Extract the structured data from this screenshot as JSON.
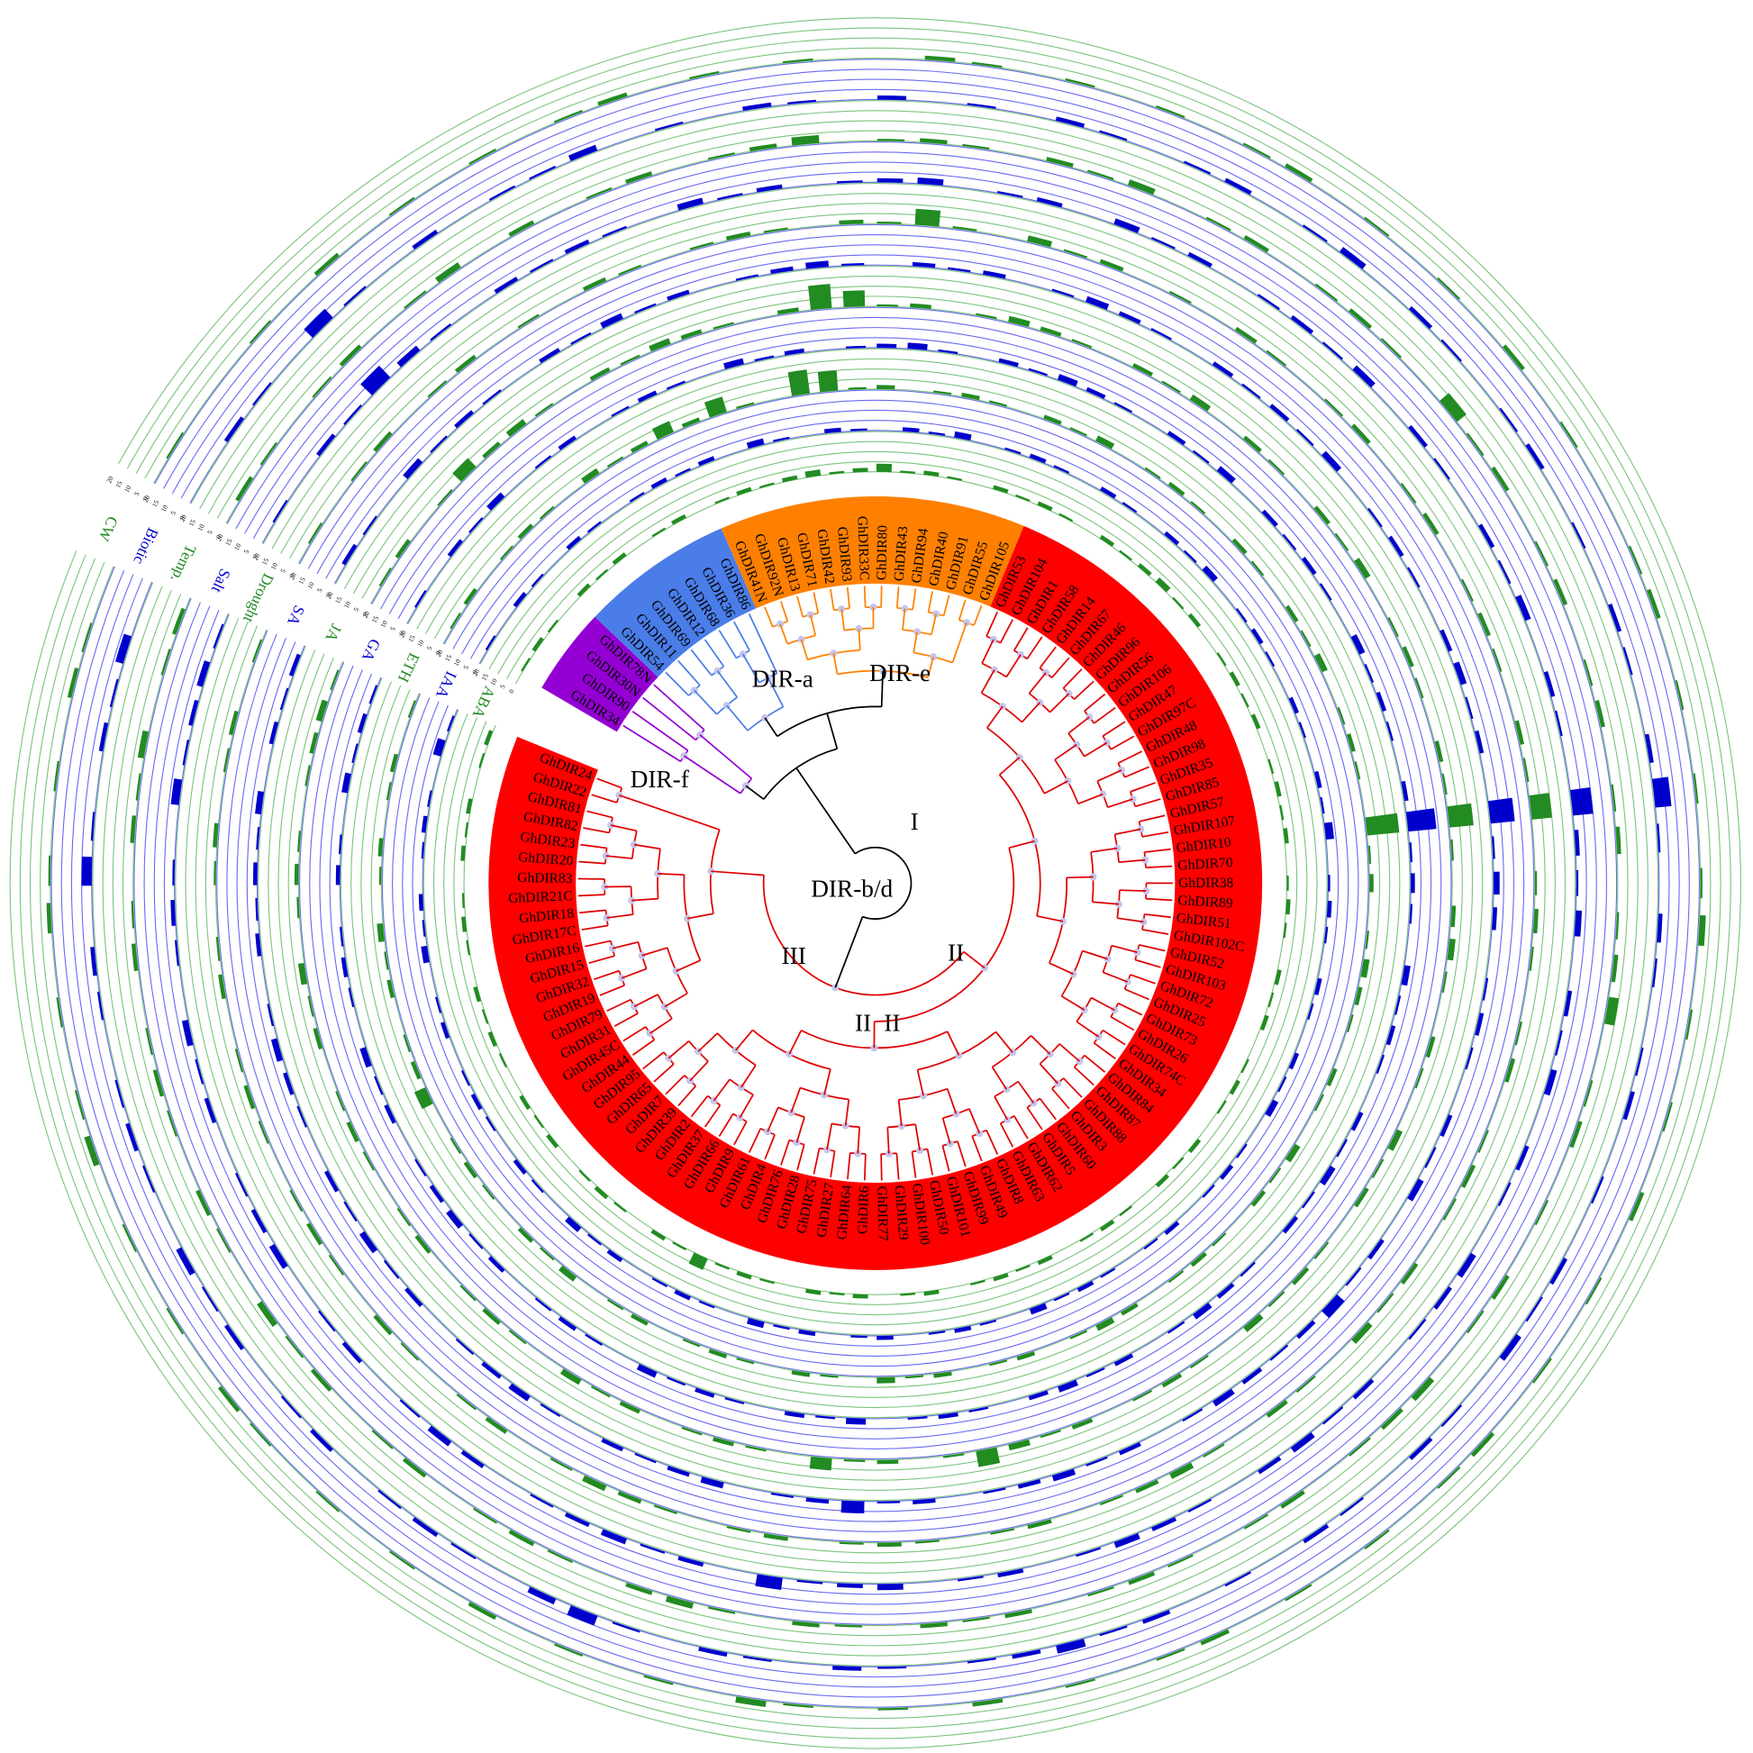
{
  "clades": [
    {
      "color": "#9400d3",
      "leaves": [
        "GhDIR34",
        "GhDIR90",
        "GhDIR30N",
        "GhDIR78N"
      ]
    },
    {
      "color": "#4a7de8",
      "leaves": [
        "GhDIR54",
        "GhDIR11",
        "GhDIR69",
        "GhDIR12",
        "GhDIR68",
        "GhDIR36",
        "GhDIR86"
      ]
    },
    {
      "color": "#ff8000",
      "leaves": [
        "GhDIR41N",
        "GhDIR92N",
        "GhDIR13",
        "GhDIR71",
        "GhDIR42",
        "GhDIR93",
        "GhDIR33C",
        "GhDIR80",
        "GhDIR43",
        "GhDIR94",
        "GhDIR40",
        "GhDIR91",
        "GhDIR55",
        "GhDIR105"
      ]
    },
    {
      "color": "#ff0000",
      "leaves": [
        "GhDIR53",
        "GhDIR104",
        "GhDIR1",
        "GhDIR58",
        "GhDIR14",
        "GhDIR67",
        "GhDIR46",
        "GhDIR96",
        "GhDIR56",
        "GhDIR106",
        "GhDIR47",
        "GhDIR97C",
        "GhDIR48",
        "GhDIR98",
        "GhDIR35",
        "GhDIR85",
        "GhDIR57",
        "GhDIR107",
        "GhDIR10",
        "GhDIR70",
        "GhDIR38",
        "GhDIR89",
        "GhDIR51",
        "GhDIR102C",
        "GhDIR52",
        "GhDIR103",
        "GhDIR72",
        "GhDIR25",
        "GhDIR73",
        "GhDIR26",
        "GhDIR74C",
        "GhDIR34",
        "GhDIR84",
        "GhDIR87",
        "GhDIR88",
        "GhDIR3",
        "GhDIR60",
        "GhDIR5",
        "GhDIR62",
        "GhDIR63",
        "GhDIR8",
        "GhDIR49",
        "GhDIR99",
        "GhDIR101",
        "GhDIR50",
        "GhDIR100",
        "GhDIR29",
        "GhDIR77",
        "GhDIR6",
        "GhDIR64",
        "GhDIR27",
        "GhDIR75",
        "GhDIR28",
        "GhDIR76",
        "GhDIR4",
        "GhDIR61",
        "GhDIR9",
        "GhDIR66",
        "GhDIR37",
        "GhDIR2",
        "GhDIR39",
        "GhDIR7",
        "GhDIR65",
        "GhDIR95",
        "GhDIR44",
        "GhDIR45C",
        "GhDIR31",
        "GhDIR79",
        "GhDIR19",
        "GhDIR32",
        "GhDIR15",
        "GhDIR16",
        "GhDIR17C",
        "GhDIR18",
        "GhDIR21C",
        "GhDIR83",
        "GhDIR20",
        "GhDIR23",
        "GhDIR82",
        "GhDIR81",
        "GhDIR22",
        "GhDIR24"
      ]
    }
  ],
  "annotations": [
    "DIR-a",
    "DIR-e",
    "DIR-f",
    "DIR-b/d",
    "I",
    "II",
    "II",
    "II",
    "III"
  ],
  "track_lim": [
    0,
    20
  ],
  "track_ticks": [
    0,
    5,
    10,
    15,
    20
  ],
  "tracks": [
    {
      "name": "ABA",
      "color": "#228b22",
      "values": [
        1,
        2,
        1,
        0,
        2,
        1,
        2,
        0,
        1,
        2,
        0,
        1,
        2,
        1,
        2,
        3,
        1,
        2,
        4,
        1,
        2,
        1,
        0,
        2,
        1,
        2,
        1,
        0,
        2,
        1,
        2,
        3,
        1,
        2,
        0,
        1,
        2,
        1,
        2,
        0,
        1,
        2,
        1,
        2,
        0,
        1,
        2,
        1,
        0,
        2,
        1,
        2,
        0,
        1,
        2,
        1,
        0,
        2,
        1,
        2,
        0,
        1,
        2,
        1,
        0,
        2,
        1,
        2,
        1,
        0,
        2,
        1,
        0,
        2,
        1,
        2,
        0,
        1,
        2,
        1,
        6,
        1,
        2,
        0,
        1,
        2,
        1,
        0,
        2,
        1,
        2,
        0,
        1,
        2,
        1,
        2,
        0,
        1,
        2,
        1,
        0,
        2,
        1,
        2,
        0,
        1,
        2
      ]
    },
    {
      "name": "IAA",
      "color": "#0000cc",
      "values": [
        1,
        0,
        2,
        1,
        0,
        2,
        1,
        0,
        1,
        2,
        1,
        2,
        0,
        3,
        1,
        0,
        2,
        1,
        0,
        2,
        1,
        3,
        0,
        1,
        2,
        1,
        0,
        2,
        1,
        0,
        2,
        1,
        3,
        0,
        1,
        2,
        1,
        0,
        2,
        1,
        0,
        2,
        1,
        4,
        0,
        1,
        2,
        1,
        0,
        2,
        1,
        0,
        2,
        1,
        3,
        0,
        1,
        2,
        1,
        0,
        2,
        1,
        0,
        1,
        2,
        1,
        3,
        0,
        1,
        2,
        1,
        0,
        2,
        1,
        0,
        2,
        1,
        3,
        0,
        1,
        2,
        1,
        0,
        2,
        1,
        3,
        0,
        1,
        2,
        0,
        1,
        2,
        1,
        0,
        2,
        1,
        0,
        3,
        1,
        2,
        0,
        1,
        2,
        1,
        0,
        4,
        1
      ]
    },
    {
      "name": "ETH",
      "color": "#228b22",
      "values": [
        1,
        2,
        0,
        1,
        2,
        1,
        0,
        3,
        1,
        2,
        6,
        2,
        8,
        1,
        0,
        12,
        10,
        1,
        2,
        0,
        1,
        2,
        1,
        0,
        2,
        1,
        3,
        0,
        1,
        2,
        1,
        0,
        2,
        1,
        0,
        2,
        1,
        3,
        0,
        1,
        2,
        1,
        0,
        16,
        1,
        2,
        0,
        1,
        3,
        2,
        1,
        0,
        2,
        1,
        0,
        3,
        1,
        2,
        0,
        1,
        2,
        1,
        0,
        2,
        3,
        1,
        0,
        2,
        1,
        0,
        2,
        1,
        3,
        0,
        1,
        2,
        0,
        1,
        2,
        1,
        0,
        2,
        1,
        0,
        3,
        1,
        2,
        0,
        1,
        2,
        1,
        0,
        6,
        2,
        1,
        0,
        2,
        1,
        3,
        0,
        1,
        2,
        0,
        1,
        2,
        0,
        1
      ]
    },
    {
      "name": "GA",
      "color": "#0000cc",
      "values": [
        1,
        0,
        2,
        1,
        3,
        0,
        1,
        2,
        0,
        1,
        2,
        1,
        0,
        3,
        1,
        2,
        0,
        1,
        2,
        3,
        1,
        0,
        2,
        1,
        3,
        2,
        1,
        0,
        2,
        1,
        3,
        0,
        2,
        1,
        2,
        1,
        0,
        3,
        1,
        2,
        1,
        0,
        2,
        14,
        1,
        2,
        1,
        0,
        3,
        1,
        2,
        1,
        0,
        2,
        1,
        3,
        1,
        2,
        0,
        1,
        2,
        3,
        1,
        0,
        2,
        1,
        3,
        2,
        0,
        1,
        2,
        1,
        0,
        3,
        1,
        2,
        0,
        1,
        2,
        1,
        3,
        0,
        1,
        2,
        1,
        0,
        2,
        1,
        3,
        2,
        1,
        0,
        2,
        1,
        3,
        0,
        1,
        2,
        1,
        0,
        2,
        1,
        0,
        3,
        1,
        2,
        1
      ]
    },
    {
      "name": "JA",
      "color": "#228b22",
      "values": [
        1,
        2,
        0,
        1,
        6,
        2,
        3,
        1,
        0,
        2,
        1,
        3,
        2,
        1,
        0,
        2,
        12,
        8,
        1,
        2,
        0,
        1,
        3,
        2,
        1,
        0,
        2,
        1,
        3,
        0,
        2,
        1,
        0,
        2,
        1,
        3,
        0,
        1,
        2,
        1,
        0,
        2,
        1,
        12,
        1,
        0,
        2,
        3,
        1,
        0,
        2,
        1,
        0,
        3,
        1,
        2,
        0,
        1,
        2,
        1,
        3,
        0,
        1,
        2,
        1,
        0,
        2,
        1,
        3,
        8,
        1,
        0,
        2,
        1,
        6,
        0,
        1,
        2,
        1,
        0,
        2,
        1,
        3,
        0,
        1,
        2,
        1,
        0,
        2,
        1,
        0,
        1,
        2,
        1,
        0,
        2,
        1,
        3,
        0,
        1,
        2,
        1,
        0,
        1,
        2,
        3,
        1
      ]
    },
    {
      "name": "SA",
      "color": "#0000cc",
      "values": [
        2,
        1,
        0,
        3,
        1,
        2,
        1,
        0,
        2,
        1,
        3,
        1,
        2,
        0,
        1,
        2,
        3,
        1,
        0,
        2,
        1,
        2,
        0,
        1,
        3,
        2,
        1,
        0,
        2,
        1,
        2,
        1,
        3,
        0,
        1,
        2,
        1,
        0,
        2,
        3,
        1,
        2,
        0,
        12,
        1,
        3,
        2,
        0,
        1,
        2,
        1,
        0,
        2,
        1,
        3,
        0,
        2,
        1,
        5,
        2,
        1,
        2,
        3,
        1,
        0,
        2,
        1,
        3,
        2,
        1,
        0,
        2,
        1,
        6,
        2,
        1,
        0,
        3,
        2,
        1,
        2,
        0,
        1,
        3,
        2,
        1,
        0,
        2,
        1,
        3,
        1,
        2,
        0,
        1,
        2,
        3,
        1,
        0,
        2,
        1,
        2,
        1,
        3,
        0,
        2,
        1,
        2
      ]
    },
    {
      "name": "Drought",
      "color": "#228b22",
      "values": [
        1,
        0,
        1,
        2,
        0,
        1,
        2,
        0,
        1,
        0,
        2,
        1,
        0,
        1,
        2,
        1,
        0,
        2,
        1,
        8,
        1,
        0,
        3,
        1,
        2,
        0,
        1,
        0,
        2,
        1,
        0,
        1,
        2,
        0,
        1,
        2,
        0,
        1,
        2,
        1,
        0,
        2,
        1,
        10,
        0,
        1,
        2,
        1,
        0,
        1,
        2,
        0,
        1,
        2,
        1,
        0,
        2,
        1,
        3,
        0,
        1,
        2,
        0,
        1,
        3,
        2,
        1,
        0,
        2,
        1,
        0,
        1,
        2,
        1,
        0,
        2,
        1,
        0,
        1,
        2,
        3,
        1,
        0,
        2,
        1,
        0,
        1,
        2,
        0,
        1,
        2,
        1,
        0,
        1,
        2,
        1,
        0,
        2,
        1,
        0,
        1,
        2,
        0,
        1,
        2,
        0,
        1
      ]
    },
    {
      "name": "Salt",
      "color": "#0000cc",
      "values": [
        1,
        0,
        2,
        1,
        8,
        3,
        1,
        0,
        2,
        1,
        2,
        1,
        0,
        3,
        1,
        2,
        0,
        1,
        2,
        3,
        0,
        1,
        2,
        0,
        3,
        1,
        2,
        0,
        1,
        2,
        1,
        3,
        0,
        2,
        1,
        0,
        2,
        1,
        3,
        0,
        2,
        1,
        0,
        10,
        2,
        1,
        3,
        0,
        2,
        1,
        3,
        0,
        2,
        1,
        0,
        3,
        2,
        1,
        0,
        2,
        1,
        3,
        2,
        0,
        1,
        2,
        3,
        1,
        0,
        2,
        1,
        0,
        3,
        2,
        1,
        6,
        0,
        2,
        1,
        3,
        2,
        1,
        0,
        2,
        3,
        1,
        0,
        2,
        1,
        0,
        3,
        2,
        1,
        0,
        2,
        1,
        3,
        0,
        1,
        2,
        1,
        0,
        4,
        1,
        2,
        3,
        1
      ]
    },
    {
      "name": "Temp.",
      "color": "#228b22",
      "values": [
        2,
        1,
        0,
        1,
        2,
        0,
        1,
        3,
        0,
        2,
        0,
        1,
        2,
        0,
        1,
        2,
        4,
        0,
        1,
        2,
        1,
        0,
        2,
        1,
        3,
        0,
        1,
        2,
        0,
        1,
        2,
        1,
        0,
        6,
        1,
        2,
        0,
        1,
        2,
        0,
        1,
        2,
        0,
        1,
        2,
        0,
        1,
        2,
        5,
        0,
        1,
        2,
        0,
        1,
        0,
        2,
        1,
        0,
        3,
        2,
        1,
        0,
        2,
        1,
        0,
        1,
        2,
        1,
        0,
        2,
        1,
        2,
        0,
        1,
        2,
        0,
        1,
        3,
        2,
        0,
        1,
        2,
        1,
        0,
        2,
        1,
        0,
        2,
        1,
        3,
        0,
        1,
        2,
        0,
        1,
        2,
        1,
        0,
        2,
        1,
        0,
        2,
        1,
        3,
        0,
        1,
        2
      ]
    },
    {
      "name": "Biotic",
      "color": "#0000cc",
      "values": [
        0,
        2,
        1,
        0,
        6,
        1,
        0,
        2,
        0,
        1,
        1,
        3,
        0,
        1,
        0,
        2,
        1,
        0,
        2,
        0,
        1,
        0,
        2,
        1,
        0,
        1,
        2,
        0,
        1,
        3,
        0,
        2,
        1,
        0,
        1,
        2,
        0,
        1,
        0,
        2,
        1,
        0,
        2,
        8,
        1,
        0,
        2,
        1,
        0,
        1,
        2,
        0,
        1,
        0,
        2,
        1,
        3,
        0,
        1,
        2,
        0,
        1,
        2,
        0,
        1,
        0,
        2,
        1,
        4,
        2,
        1,
        0,
        1,
        2,
        0,
        1,
        2,
        0,
        1,
        5,
        3,
        0,
        1,
        2,
        1,
        0,
        2,
        1,
        0,
        2,
        1,
        3,
        0,
        1,
        2,
        1,
        0,
        1,
        2,
        0,
        5,
        1,
        0,
        2,
        1,
        4,
        0
      ]
    },
    {
      "name": "CW",
      "color": "#228b22",
      "values": [
        1,
        0,
        0,
        1,
        0,
        2,
        0,
        1,
        0,
        1,
        0,
        1,
        2,
        0,
        1,
        0,
        1,
        0,
        0,
        2,
        1,
        0,
        1,
        0,
        1,
        0,
        1,
        2,
        0,
        1,
        0,
        1,
        0,
        2,
        0,
        1,
        0,
        0,
        1,
        2,
        0,
        1,
        0,
        1,
        0,
        1,
        3,
        0,
        1,
        0,
        1,
        0,
        2,
        0,
        1,
        0,
        1,
        0,
        2,
        1,
        0,
        1,
        0,
        1,
        0,
        2,
        1,
        0,
        1,
        0,
        2,
        0,
        1,
        0,
        1,
        3,
        0,
        1,
        0,
        1,
        0,
        2,
        0,
        1,
        0,
        1,
        0,
        1,
        2,
        0,
        1,
        0,
        1,
        0,
        3,
        1,
        0,
        1,
        0,
        2,
        1,
        0,
        1,
        0,
        2,
        1,
        0
      ]
    }
  ]
}
